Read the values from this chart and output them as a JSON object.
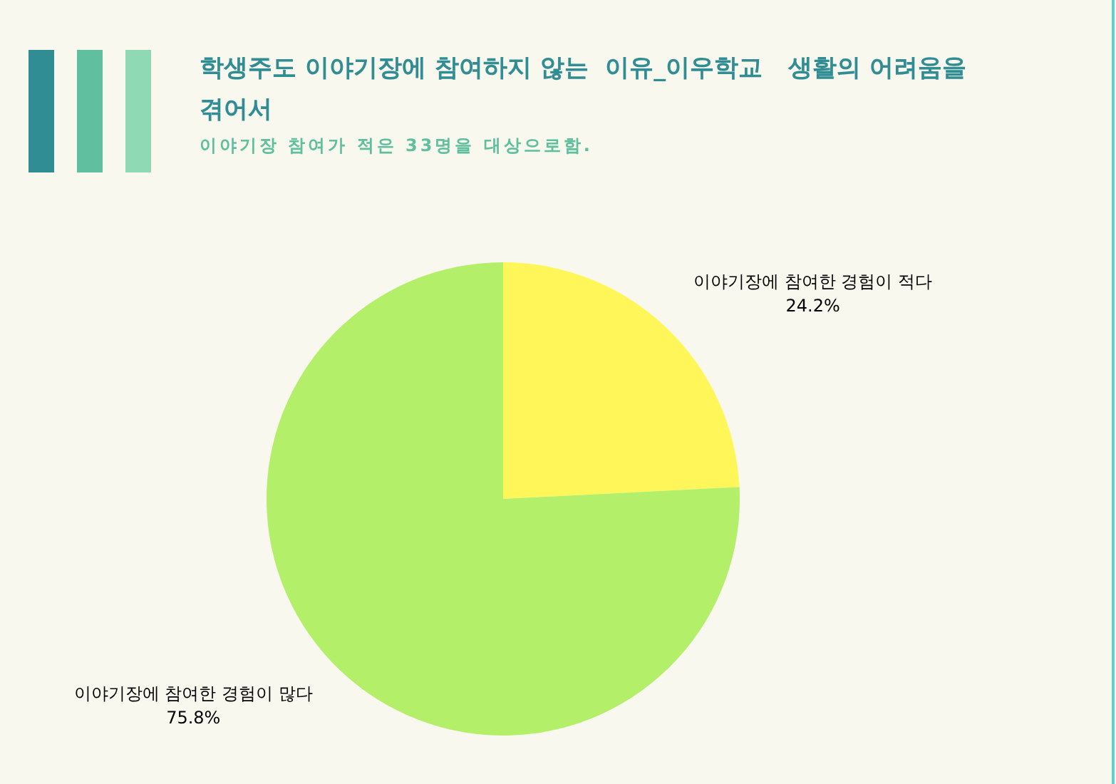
{
  "chart_data": {
    "type": "pie",
    "title": "학생주도 이야기장에 참여하지 않는  이유_이우학교   생활의 어려움을  겪어서",
    "subtitle": "이야기장 참여가 적은 33명을 대상으로함.",
    "categories": [
      "이야기장에 참여한 경험이 적다",
      "이야기장에 참여한 경험이 많다"
    ],
    "values": [
      24.2,
      75.8
    ],
    "colors": [
      "#fff759",
      "#b3ef69"
    ],
    "value_labels": [
      "24.2%",
      "75.8%"
    ]
  }
}
